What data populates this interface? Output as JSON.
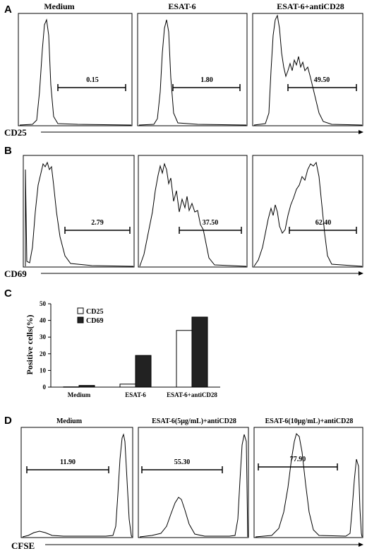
{
  "panel_a": {
    "letter": "A",
    "axis_label": "CD25",
    "plots": [
      {
        "title": "Medium",
        "gate_value": "0.15"
      },
      {
        "title": "ESAT-6",
        "gate_value": "1.80"
      },
      {
        "title": "ESAT-6+antiCD28",
        "gate_value": "49.50"
      }
    ]
  },
  "panel_b": {
    "letter": "B",
    "axis_label": "CD69",
    "plots": [
      {
        "gate_value": "2.79"
      },
      {
        "gate_value": "37.50"
      },
      {
        "gate_value": "62.40"
      }
    ]
  },
  "panel_c": {
    "letter": "C"
  },
  "panel_d": {
    "letter": "D",
    "axis_label": "CFSE",
    "plots": [
      {
        "title": "Medium",
        "gate_value": "11.90"
      },
      {
        "title": "ESAT-6(5μg/mL)+antiCD28",
        "gate_value": "55.30"
      },
      {
        "title": "ESAT-6(10μg/mL)+antiCD28",
        "gate_value": "77.90"
      }
    ]
  },
  "chart_data": {
    "type": "bar",
    "categories": [
      "Medium",
      "ESAT-6",
      "ESAT-6+antiCD28"
    ],
    "series": [
      {
        "name": "CD25",
        "values": [
          0.15,
          1.8,
          34
        ],
        "color": "#ffffff"
      },
      {
        "name": "CD69",
        "values": [
          1,
          19,
          42
        ],
        "color": "#222222"
      }
    ],
    "ylabel": "Positive cells(%)",
    "ylim": [
      0,
      50
    ],
    "yticks": [
      0,
      10,
      20,
      30,
      40,
      50
    ],
    "legend_placement": "top-left"
  }
}
